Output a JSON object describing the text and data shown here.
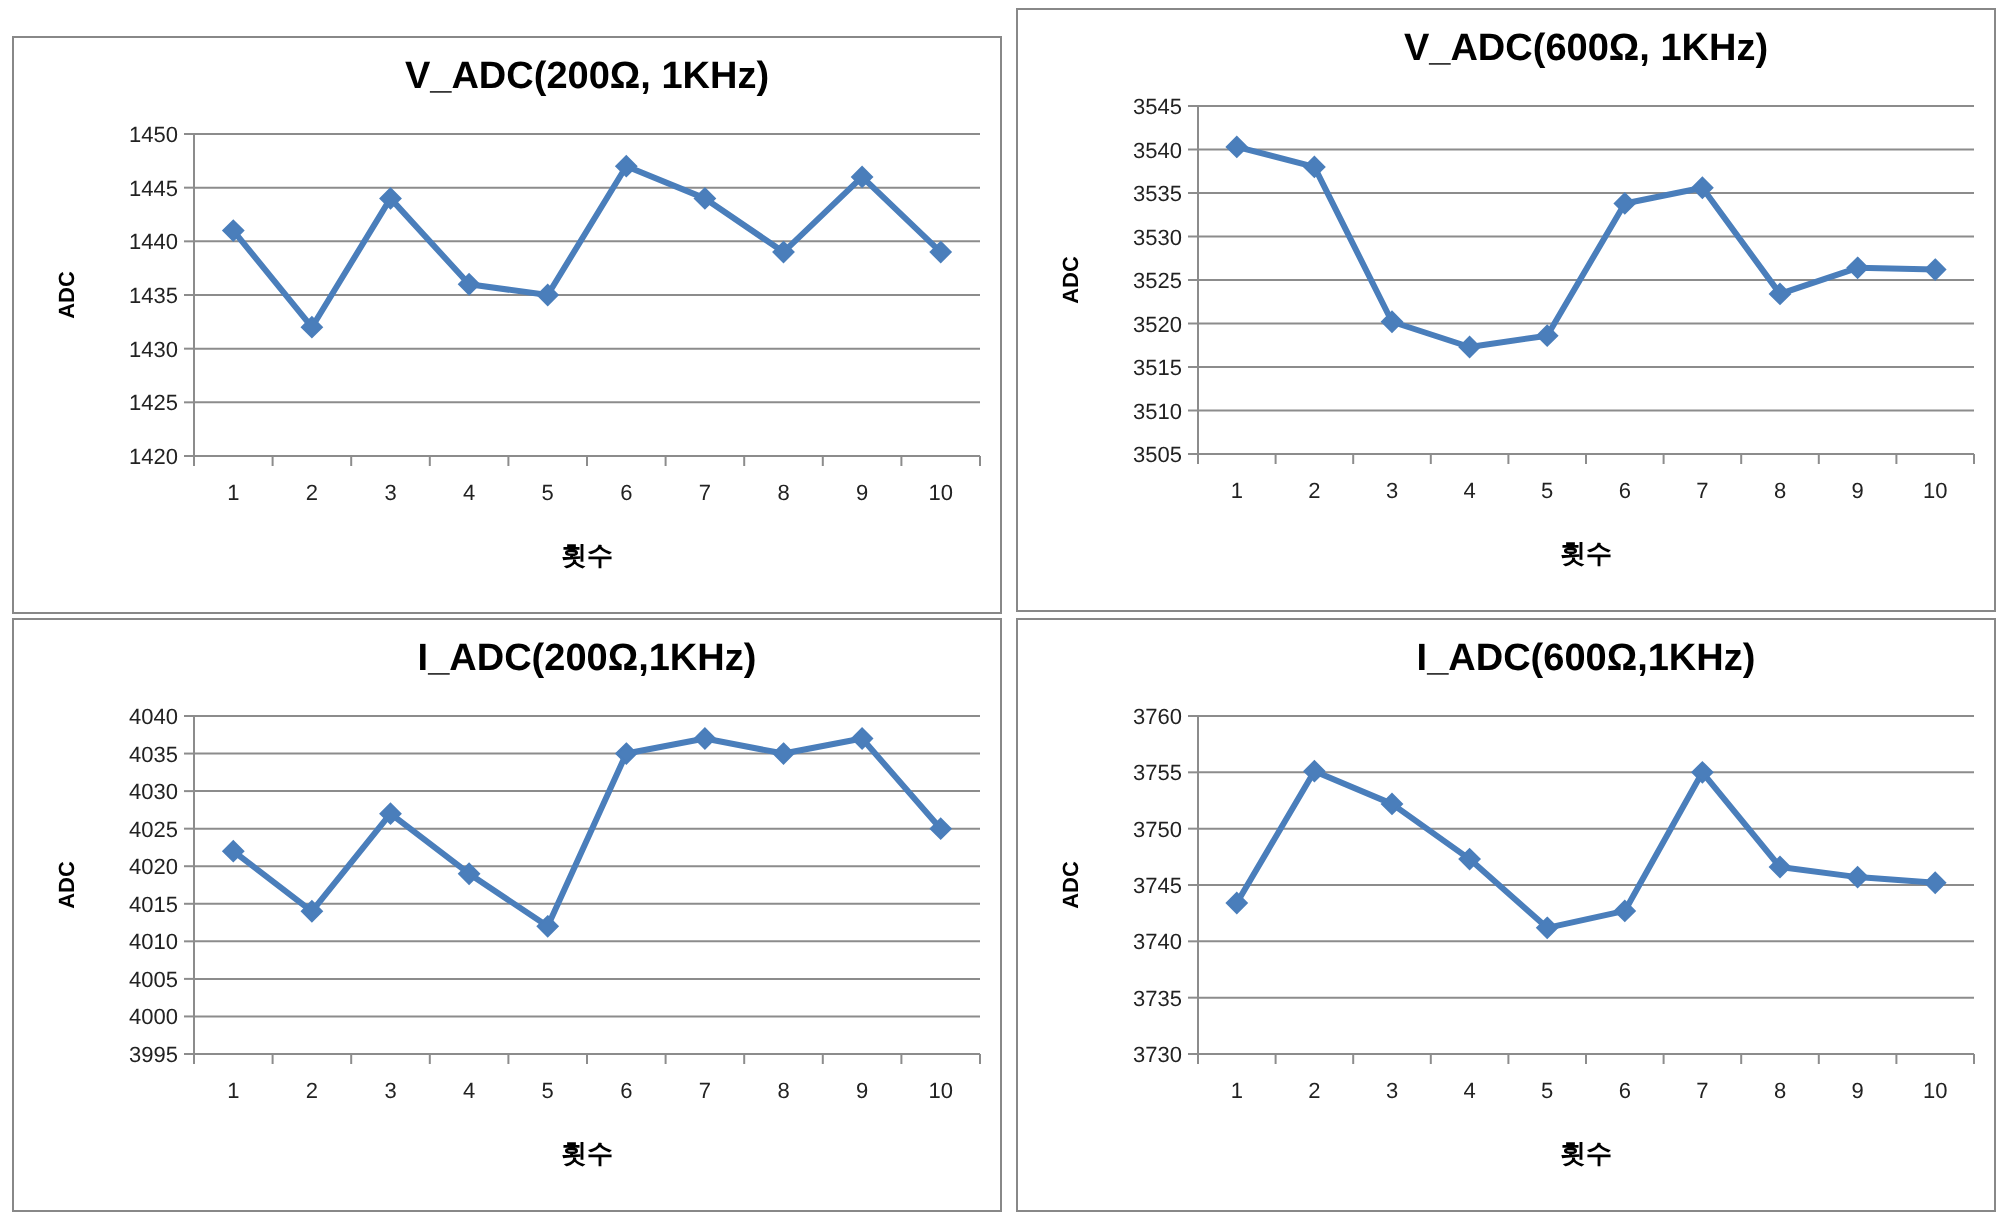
{
  "chart_data": [
    {
      "type": "line",
      "title": "V_ADC(200Ω, 1KHz)",
      "xlabel": "횟수",
      "ylabel": "ADC",
      "categories": [
        "1",
        "2",
        "3",
        "4",
        "5",
        "6",
        "7",
        "8",
        "9",
        "10"
      ],
      "series": [
        {
          "color": "#4a7ebb",
          "values": [
            1441,
            1432,
            1444,
            1436,
            1435,
            1447,
            1444,
            1439,
            1446,
            1439
          ]
        }
      ],
      "ylim": [
        1420,
        1450
      ],
      "yticks": [
        1420,
        1425,
        1430,
        1435,
        1440,
        1445,
        1450
      ],
      "grid": "y",
      "marker": "diamond",
      "line_style": "solid"
    },
    {
      "type": "line",
      "title": "V_ADC(600Ω, 1KHz)",
      "xlabel": "횟수",
      "ylabel": "ADC",
      "categories": [
        "1",
        "2",
        "3",
        "4",
        "5",
        "6",
        "7",
        "8",
        "9",
        "10"
      ],
      "series": [
        {
          "color": "#4a7ebb",
          "values": [
            3540.3,
            3538,
            3520.2,
            3517.3,
            3518.6,
            3533.8,
            3535.6,
            3523.4,
            3526.4,
            3526.2
          ]
        }
      ],
      "ylim": [
        3505,
        3545
      ],
      "yticks": [
        3505,
        3510,
        3515,
        3520,
        3525,
        3530,
        3535,
        3540,
        3545
      ],
      "grid": "y",
      "marker": "diamond",
      "line_style": "solid"
    },
    {
      "type": "line",
      "title": "I_ADC(200Ω,1KHz)",
      "xlabel": "횟수",
      "ylabel": "ADC",
      "categories": [
        "1",
        "2",
        "3",
        "4",
        "5",
        "6",
        "7",
        "8",
        "9",
        "10"
      ],
      "series": [
        {
          "color": "#4a7ebb",
          "values": [
            4022,
            4014,
            4027,
            4019,
            4012,
            4035,
            4037,
            4035,
            4037,
            4025
          ]
        }
      ],
      "ylim": [
        3995,
        4040
      ],
      "yticks": [
        3995,
        4000,
        4005,
        4010,
        4015,
        4020,
        4025,
        4030,
        4035,
        4040
      ],
      "grid": "y",
      "marker": "diamond",
      "line_style": "solid"
    },
    {
      "type": "line",
      "title": "I_ADC(600Ω,1KHz)",
      "xlabel": "횟수",
      "ylabel": "ADC",
      "categories": [
        "1",
        "2",
        "3",
        "4",
        "5",
        "6",
        "7",
        "8",
        "9",
        "10"
      ],
      "series": [
        {
          "color": "#4a7ebb",
          "values": [
            3743.4,
            3755.1,
            3752.2,
            3747.3,
            3741.2,
            3742.7,
            3755,
            3746.6,
            3745.7,
            3745.2
          ]
        }
      ],
      "ylim": [
        3730,
        3760
      ],
      "yticks": [
        3730,
        3735,
        3740,
        3745,
        3750,
        3755,
        3760
      ],
      "grid": "y",
      "marker": "diamond",
      "line_style": "solid"
    }
  ]
}
